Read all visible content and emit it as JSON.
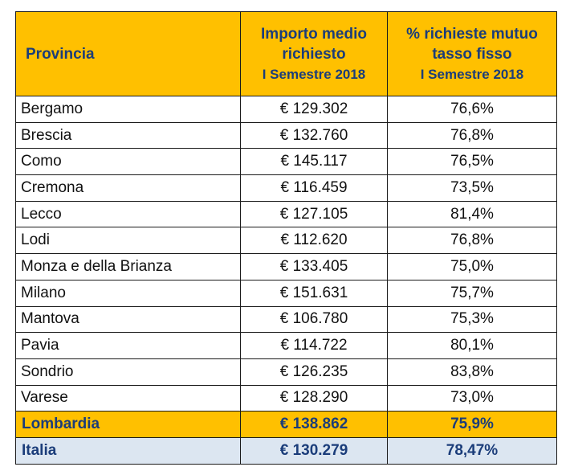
{
  "header": {
    "col1": "Provincia",
    "col2_line1": "Importo medio",
    "col2_line2": "richiesto",
    "col2_line3": "I Semestre 2018",
    "col3_line1": "% richieste mutuo",
    "col3_line2": "tasso fisso",
    "col3_line3": "I Semestre 2018"
  },
  "rows": [
    {
      "provincia": "Bergamo",
      "importo": "€ 129.302",
      "perc": "76,6%"
    },
    {
      "provincia": "Brescia",
      "importo": "€ 132.760",
      "perc": "76,8%"
    },
    {
      "provincia": "Como",
      "importo": "€ 145.117",
      "perc": "76,5%"
    },
    {
      "provincia": "Cremona",
      "importo": "€ 116.459",
      "perc": "73,5%"
    },
    {
      "provincia": "Lecco",
      "importo": "€ 127.105",
      "perc": "81,4%"
    },
    {
      "provincia": "Lodi",
      "importo": "€ 112.620",
      "perc": "76,8%"
    },
    {
      "provincia": "Monza e della Brianza",
      "importo": "€ 133.405",
      "perc": "75,0%"
    },
    {
      "provincia": "Milano",
      "importo": "€ 151.631",
      "perc": "75,7%"
    },
    {
      "provincia": "Mantova",
      "importo": "€ 106.780",
      "perc": "75,3%"
    },
    {
      "provincia": "Pavia",
      "importo": "€ 114.722",
      "perc": "80,1%"
    },
    {
      "provincia": "Sondrio",
      "importo": "€ 126.235",
      "perc": "83,8%"
    },
    {
      "provincia": "Varese",
      "importo": "€ 128.290",
      "perc": "73,0%"
    }
  ],
  "lombardia": {
    "provincia": "Lombardia",
    "importo": "€ 138.862",
    "perc": "75,9%"
  },
  "italia": {
    "provincia": "Italia",
    "importo": "€ 130.279",
    "perc": "78,47%"
  },
  "colors": {
    "header_bg": "#ffc000",
    "header_text": "#1b3d7a",
    "italia_bg": "#dce6f1"
  }
}
